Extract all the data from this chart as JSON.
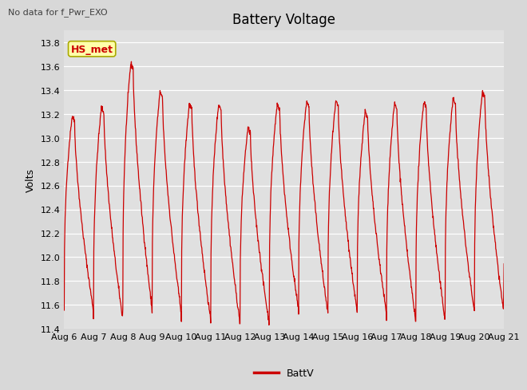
{
  "title": "Battery Voltage",
  "ylabel": "Volts",
  "note_text": "No data for f_Pwr_EXO",
  "legend_label": "BattV",
  "legend_line_color": "#cc0000",
  "line_color": "#cc0000",
  "ylim": [
    11.4,
    13.9
  ],
  "yticks": [
    11.4,
    11.6,
    11.8,
    12.0,
    12.2,
    12.4,
    12.6,
    12.8,
    13.0,
    13.2,
    13.4,
    13.6,
    13.8
  ],
  "bg_color": "#d8d8d8",
  "plot_bg_color": "#e0e0e0",
  "annotation_box_color": "#ffffaa",
  "annotation_text": "HS_met",
  "annotation_text_color": "#cc0000",
  "title_fontsize": 12,
  "axis_label_fontsize": 9,
  "tick_fontsize": 8,
  "note_fontsize": 8,
  "legend_fontsize": 9,
  "line_width": 0.9,
  "xlim": [
    0,
    15
  ],
  "tick_labels": [
    "Aug 6",
    "Aug 7",
    "Aug 8",
    "Aug 9",
    "Aug 10",
    "Aug 11",
    "Aug 12",
    "Aug 13",
    "Aug 14",
    "Aug 15",
    "Aug 16",
    "Aug 17",
    "Aug 18",
    "Aug 19",
    "Aug 20",
    "Aug 21"
  ]
}
